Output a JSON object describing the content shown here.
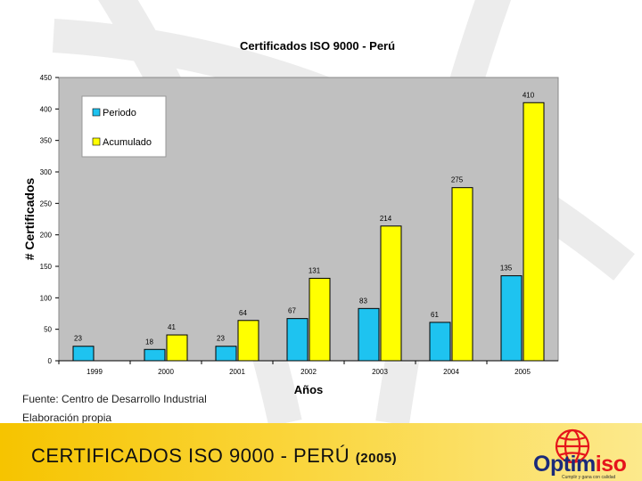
{
  "chart_data": {
    "type": "bar",
    "title": "Certificados ISO 9000 - Perú",
    "xlabel": "Años",
    "ylabel": "# Certificados",
    "ylim": [
      0,
      450
    ],
    "yticks": [
      0,
      50,
      100,
      150,
      200,
      250,
      300,
      350,
      400,
      450
    ],
    "categories": [
      "1999",
      "2000",
      "2001",
      "2002",
      "2003",
      "2004",
      "2005"
    ],
    "series": [
      {
        "name": "Periodo",
        "color": "#1ec3f0",
        "values": [
          23,
          18,
          23,
          67,
          83,
          61,
          135
        ]
      },
      {
        "name": "Acumulado",
        "color": "#ffff00",
        "values": [
          null,
          41,
          64,
          131,
          214,
          275,
          410
        ]
      }
    ],
    "grid": false,
    "legend": "top-left",
    "plot_background": "#c0c0c0"
  },
  "notes": {
    "source": "Fuente: Centro de Desarrollo Industrial",
    "elaboration": "Elaboración propia"
  },
  "footer": {
    "title": "CERTIFICADOS ISO 9000 - PERÚ",
    "year": "(2005)"
  },
  "logo": {
    "word_part1": "Optim",
    "word_part2": "iso",
    "tagline": "Cumplir y gana con calidad"
  }
}
